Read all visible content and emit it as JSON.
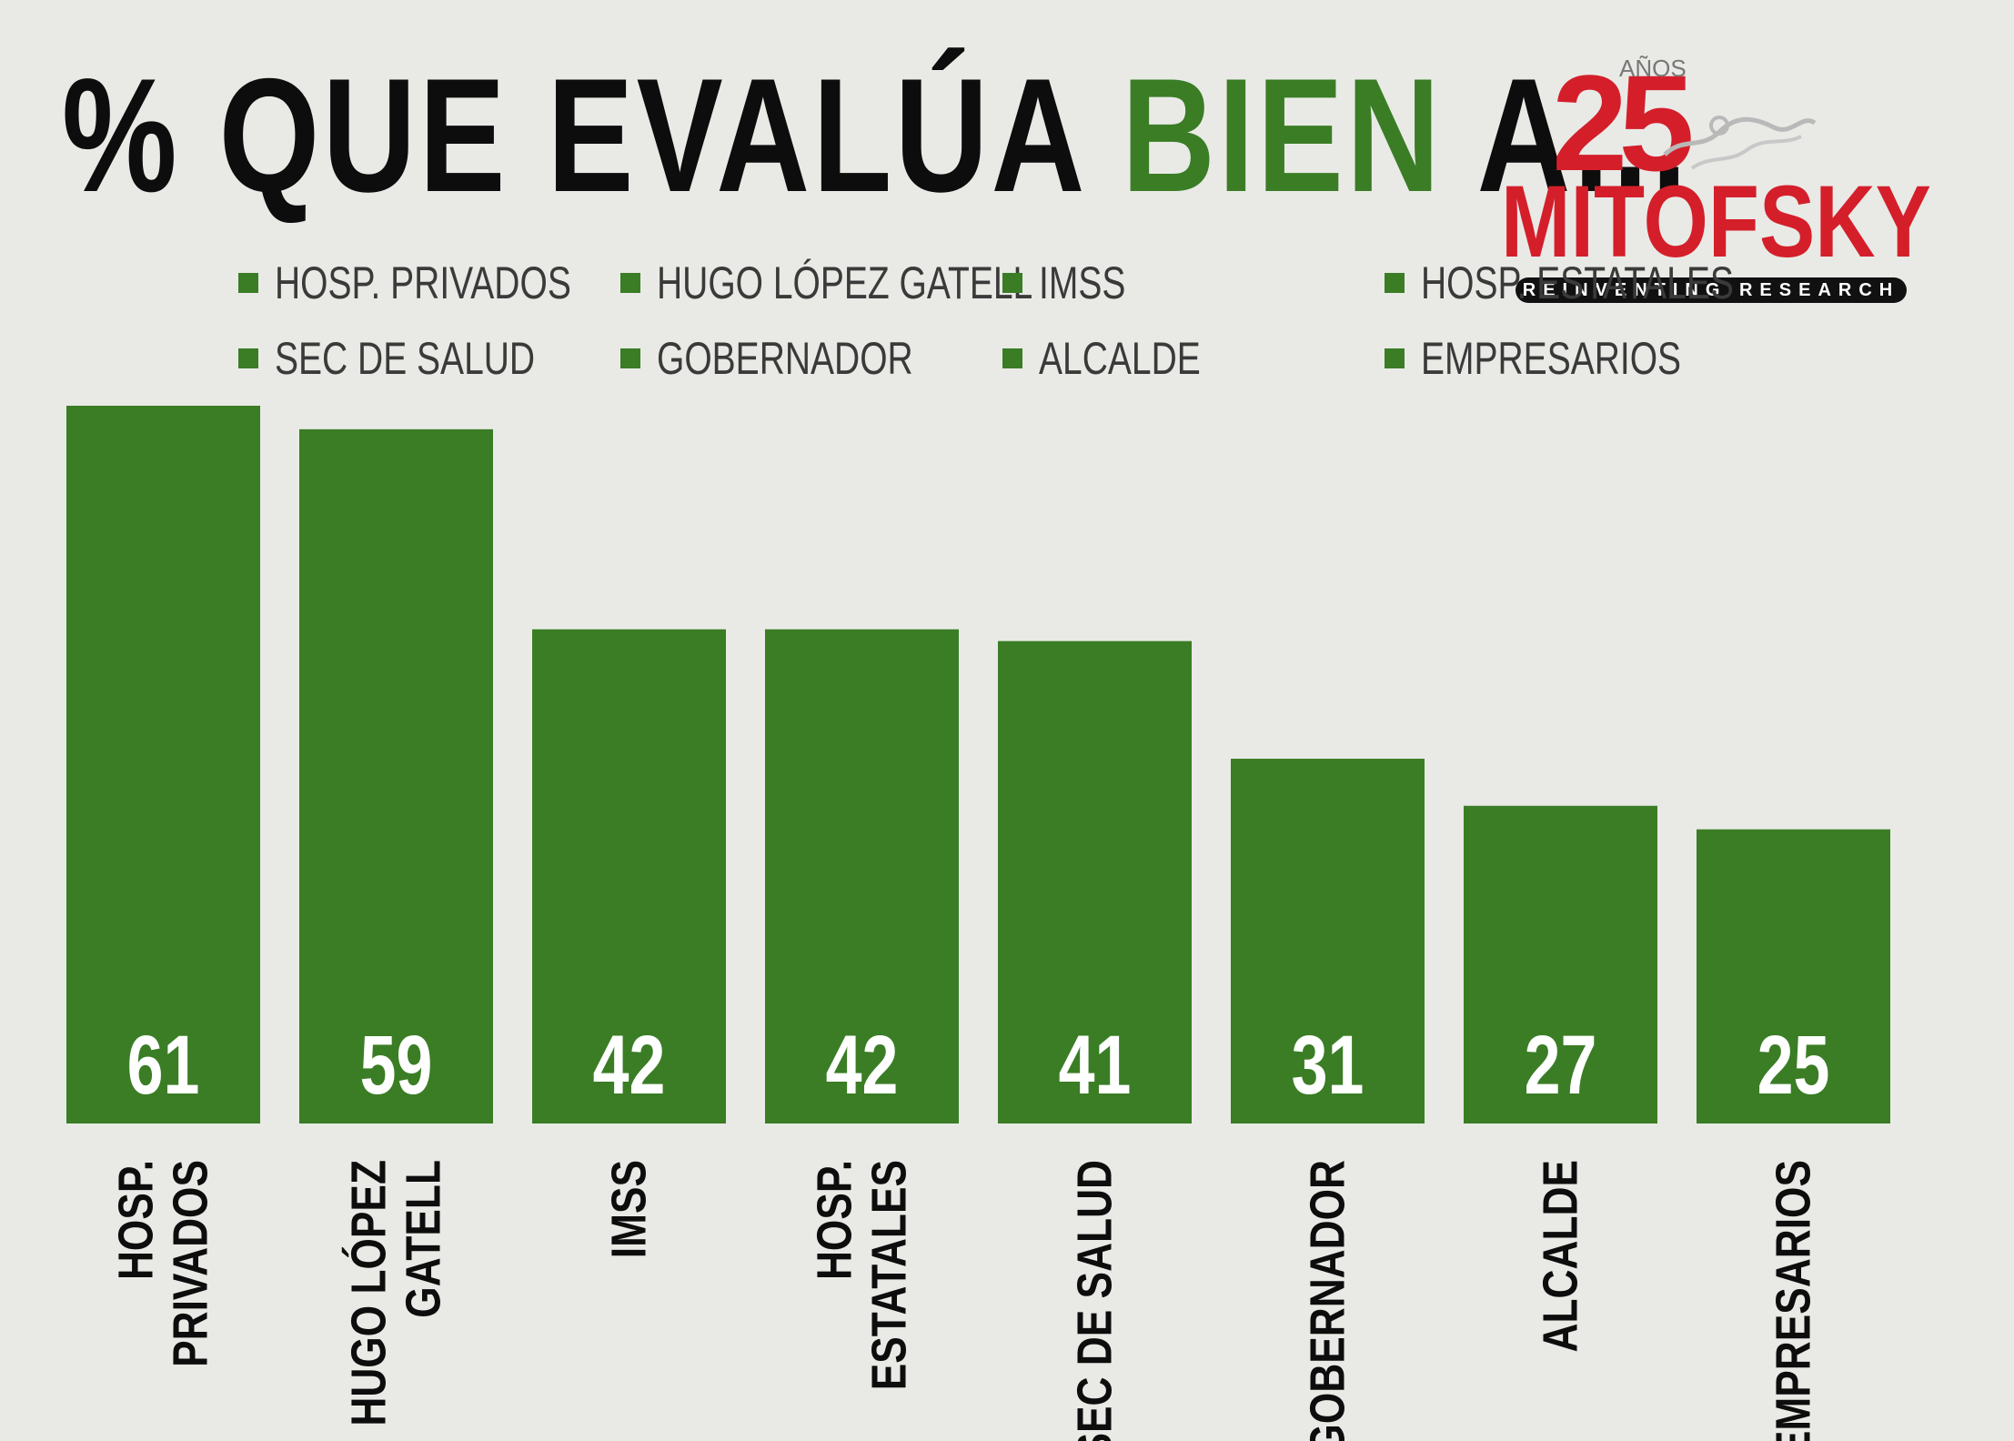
{
  "title": {
    "prefix": "% QUE EVALÚA ",
    "highlight": "BIEN",
    "suffix": " A..."
  },
  "logo": {
    "years": "25",
    "years_label": "AÑOS",
    "brand": "MITOFSKY",
    "tagline": "REINVENTING RESEARCH"
  },
  "colors": {
    "bar": "#3a7d25",
    "title_highlight": "#3a7d25",
    "logo_red": "#d41f2b",
    "background": "#e9eae6"
  },
  "chart_data": {
    "type": "bar",
    "title": "% QUE EVALÚA BIEN A...",
    "categories": [
      "HOSP. PRIVADOS",
      "HUGO LÓPEZ GATELL",
      "IMSS",
      "HOSP. ESTATALES",
      "SEC DE SALUD",
      "GOBERNADOR",
      "ALCALDE",
      "EMPRESARIOS"
    ],
    "axis_labels": [
      [
        "HOSP.",
        "PRIVADOS"
      ],
      [
        "HUGO LÓPEZ",
        "GATELL"
      ],
      [
        "IMSS"
      ],
      [
        "HOSP.",
        "ESTATALES"
      ],
      [
        "SEC DE SALUD"
      ],
      [
        "GOBERNADOR"
      ],
      [
        "ALCALDE"
      ],
      [
        "EMPRESARIOS"
      ]
    ],
    "values": [
      61,
      59,
      42,
      42,
      41,
      31,
      27,
      25
    ],
    "ylim": [
      0,
      61
    ],
    "xlabel": "",
    "ylabel": "",
    "legend": [
      "HOSP. PRIVADOS",
      "HUGO LÓPEZ GATELL",
      "IMSS",
      "HOSP. ESTATALES",
      "SEC DE SALUD",
      "GOBERNADOR",
      "ALCALDE",
      "EMPRESARIOS"
    ],
    "legend_position": "top",
    "data_labels": "inside-bottom",
    "grid": false
  }
}
